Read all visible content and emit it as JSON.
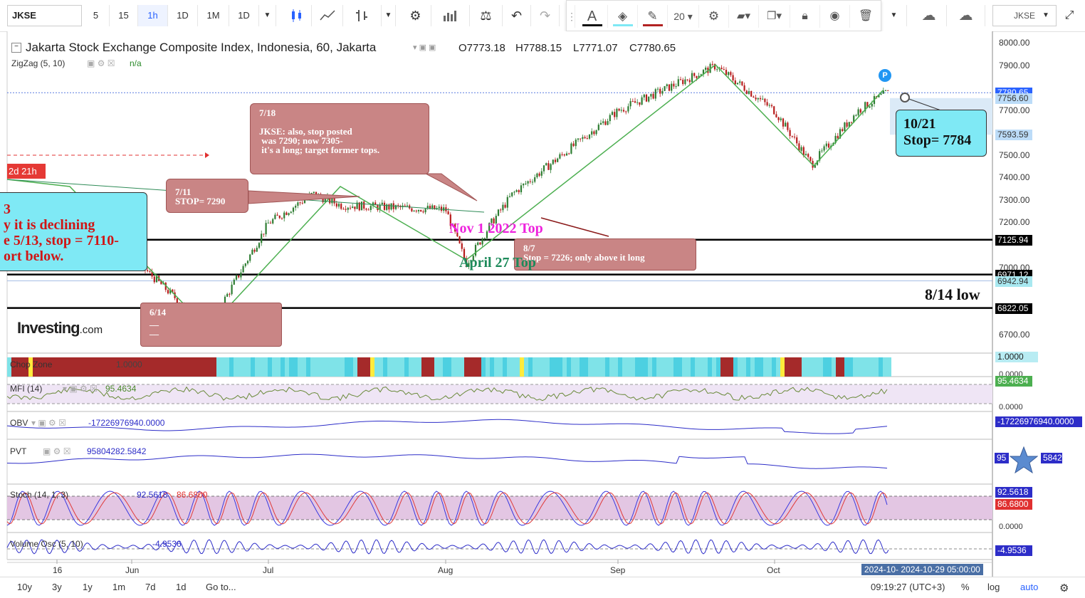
{
  "toolbar": {
    "symbol": "JKSE",
    "intervals": [
      "5",
      "15",
      "1h",
      "1D",
      "1M",
      "1D"
    ],
    "active_interval": "1h",
    "draw_font_size": "20",
    "right_symbol": "JKSE"
  },
  "legend": {
    "title": "Jakarta Stock Exchange Composite Index, Indonesia, 60, Jakarta",
    "open": "O7773.18",
    "high": "H7788.15",
    "low": "L7771.07",
    "close": "C7780.65",
    "zigzag_label": "ZigZag (5, 10)",
    "zigzag_value": "n/a"
  },
  "indicators": [
    {
      "label": "Chop Zone",
      "value": "1.0000",
      "axis_tag": "1.0000",
      "axis_zero": "0.0000"
    },
    {
      "label": "MFI (14)",
      "value": "95.4634",
      "axis_tag": "95.4634",
      "axis_zero": "0.0000"
    },
    {
      "label": "OBV",
      "value": "-17226976940.0000",
      "axis_tag": "-17226976940.0000"
    },
    {
      "label": "PVT",
      "value": "95804282.5842",
      "axis_tag_left": "95",
      "axis_tag_right": "5842"
    },
    {
      "label": "Stoch (14, 1, 3)",
      "value_k": "92.5618",
      "value_d": "86.6800",
      "axis_zero": "0.0000"
    },
    {
      "label": "Volume Osc (5, 10)",
      "value": "-4.9536",
      "axis_tag": "-4.9536"
    }
  ],
  "price_axis": {
    "ticks": [
      "8000.00",
      "7900.00",
      "7700.00",
      "7500.00",
      "7400.00",
      "7300.00",
      "7200.00",
      "7000.00",
      "6700.00"
    ],
    "tags": [
      {
        "value": "7780.65",
        "bg": "#2962ff",
        "fg": "#ffffff"
      },
      {
        "value": "7756.60",
        "bg": "#bcdcf8",
        "fg": "#333333"
      },
      {
        "value": "7593.59",
        "bg": "#bcdcf8",
        "fg": "#333333"
      },
      {
        "value": "7125.94",
        "bg": "#000000",
        "fg": "#ffffff"
      },
      {
        "value": "6971.12",
        "bg": "#000000",
        "fg": "#ffffff"
      },
      {
        "value": "6942.94",
        "bg": "#a8e8f0",
        "fg": "#333333"
      },
      {
        "value": "6822.05",
        "bg": "#000000",
        "fg": "#ffffff"
      }
    ]
  },
  "annotations": {
    "note_718": "7/18\n\nJKSE: also, stop posted\n was 7290; now 7305-\n it's a long; target former tops.",
    "note_711": "7/11\nSTOP= 7290",
    "note_87": "8/7\nStop = 7226; only above it long",
    "note_614": "6/14\n__\n__",
    "red_tag": "2d 21h",
    "left_box_lines": [
      "3",
      "y it is declining",
      "e 5/13, stop = 7110-",
      "ort below."
    ],
    "nov_top": "Nov 1 2022 Top",
    "april_top": "April 27 Top",
    "low_814": "8/14 low",
    "stop_box": "10/21\nStop= 7784",
    "logo_main": "Investing",
    "logo_suffix": ".com",
    "p_marker": "P"
  },
  "time_axis": {
    "labels": [
      "16",
      "Jun",
      "Jul",
      "Aug",
      "Sep",
      "Oct"
    ],
    "highlight": "2024-10-  2024-10-29 05:00:00"
  },
  "bottombar": {
    "ranges": [
      "10y",
      "3y",
      "1y",
      "1m",
      "7d",
      "1d",
      "Go to..."
    ],
    "clock": "09:19:27 (UTC+3)",
    "percent": "%",
    "log": "log",
    "auto": "auto"
  },
  "chart_data": {
    "type": "line",
    "title": "Jakarta Stock Exchange Composite Index, Indonesia, 60, Jakarta",
    "x": [
      "May 16",
      "Jun 1",
      "Jun 14",
      "Jul 1",
      "Jul 11",
      "Jul 18",
      "Aug 1",
      "Aug 5",
      "Aug 7",
      "Aug 14",
      "Sep 1",
      "Sep 19",
      "Oct 1",
      "Oct 9",
      "Oct 21",
      "Oct 29"
    ],
    "series": [
      {
        "values": [
          7300,
          7050,
          6730,
          7200,
          7330,
          7280,
          7260,
          7020,
          7200,
          7330,
          7700,
          7900,
          7700,
          7460,
          7700,
          7780
        ]
      }
    ],
    "ylim": [
      6650,
      8050
    ],
    "horizontal_lines": [
      7125.94,
      6971.12,
      6822.05
    ],
    "last_close": 7780.65
  }
}
